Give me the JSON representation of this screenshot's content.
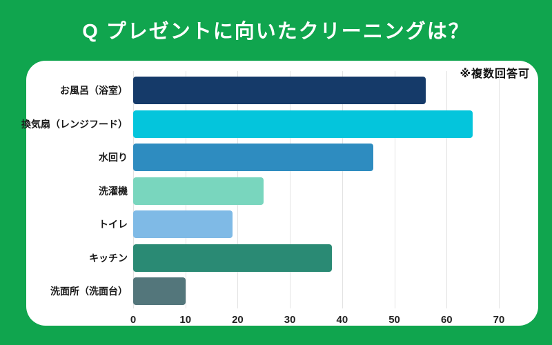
{
  "page": {
    "background_color": "#10A54E",
    "card_color": "#FFFFFF"
  },
  "chart_data": {
    "type": "bar",
    "orientation": "horizontal",
    "title": "Q プレゼントに向いたクリーニングは？",
    "note": "※複数回答可",
    "categories": [
      "お風呂（浴室）",
      "換気扇（レンジフード）",
      "水回り",
      "洗濯機",
      "トイレ",
      "キッチン",
      "洗面所（洗面台）"
    ],
    "values": [
      56,
      65,
      46,
      25,
      19,
      38,
      10
    ],
    "bar_colors": [
      "#153A69",
      "#04C5DC",
      "#2E8CC0",
      "#79D6BE",
      "#7FBAE6",
      "#2A8A74",
      "#53767B"
    ],
    "xlim": [
      0,
      70
    ],
    "x_ticks": [
      0,
      10,
      20,
      30,
      40,
      50,
      60,
      70
    ],
    "xlabel": "",
    "ylabel": "",
    "grid": true,
    "gridline_color": "#E3E3E3",
    "legend": false
  }
}
